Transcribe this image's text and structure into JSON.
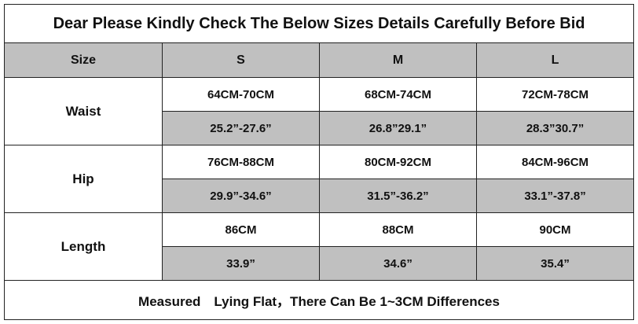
{
  "title": "Dear Please Kindly Check The Below Sizes Details Carefully Before Bid",
  "header": [
    "Size",
    "S",
    "M",
    "L"
  ],
  "rows": [
    {
      "label": "Waist",
      "cm": [
        "64CM-70CM",
        "68CM-74CM",
        "72CM-78CM"
      ],
      "inch": [
        "25.2”-27.6”",
        "26.8”29.1”",
        "28.3”30.7”"
      ]
    },
    {
      "label": "Hip",
      "cm": [
        "76CM-88CM",
        "80CM-92CM",
        "84CM-96CM"
      ],
      "inch": [
        "29.9”-34.6”",
        "31.5”-36.2”",
        "33.1”-37.8”"
      ]
    },
    {
      "label": "Length",
      "cm": [
        "86CM",
        "88CM",
        "90CM"
      ],
      "inch": [
        "33.9”",
        "34.6”",
        "35.4”"
      ]
    }
  ],
  "footer": "Measured　Lying Flat，There Can Be 1~3CM Differences"
}
